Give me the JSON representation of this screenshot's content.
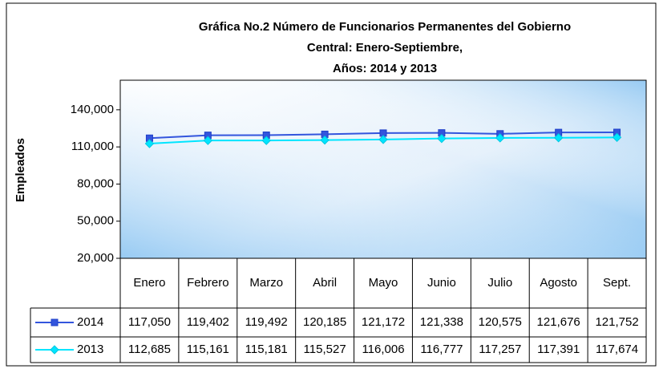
{
  "chart_data": {
    "type": "line",
    "title": [
      "Gráfica No.2 Número de Funcionarios Permanentes del Gobierno",
      "Central: Enero-Septiembre,",
      "Años: 2014 y 2013"
    ],
    "y_label": "Empleados",
    "categories": [
      "Enero",
      "Febrero",
      "Marzo",
      "Abril",
      "Mayo",
      "Junio",
      "Julio",
      "Agosto",
      "Sept."
    ],
    "series": [
      {
        "name": "2014",
        "color": "#3355dd",
        "marker": "square",
        "values": [
          117050,
          119402,
          119492,
          120185,
          121172,
          121338,
          120575,
          121676,
          121752
        ],
        "value_labels": [
          "117,050",
          "119,402",
          "119,492",
          "120,185",
          "121,172",
          "121,338",
          "120,575",
          "121,676",
          "121,752"
        ]
      },
      {
        "name": "2013",
        "color": "#00e5ff",
        "marker": "diamond",
        "values": [
          112685,
          115161,
          115181,
          115527,
          116006,
          116777,
          117257,
          117391,
          117674
        ],
        "value_labels": [
          "112,685",
          "115,161",
          "115,181",
          "115,527",
          "116,006",
          "116,777",
          "117,257",
          "117,391",
          "117,674"
        ]
      }
    ],
    "ylim": [
      20000,
      160000
    ],
    "yticks": [
      {
        "value": 20000,
        "label": "20,000"
      },
      {
        "value": 50000,
        "label": "50,000"
      },
      {
        "value": 80000,
        "label": "80,000"
      },
      {
        "value": 110000,
        "label": "110,000"
      },
      {
        "value": 140000,
        "label": "140,000"
      }
    ]
  }
}
